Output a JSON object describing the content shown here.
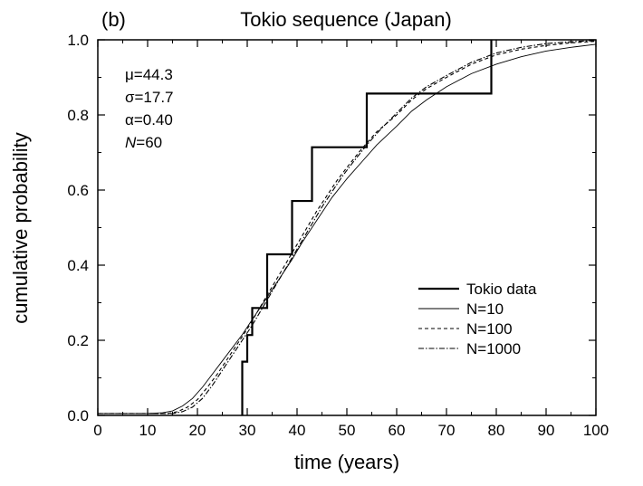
{
  "chart_data": {
    "type": "line",
    "panel_label": "(b)",
    "title": "Tokio sequence (Japan)",
    "xlabel": "time (years)",
    "ylabel": "cumulative probability",
    "xlim": [
      0,
      100
    ],
    "ylim": [
      0.0,
      1.0
    ],
    "x_ticks": [
      "0",
      "10",
      "20",
      "30",
      "40",
      "50",
      "60",
      "70",
      "80",
      "90",
      "100"
    ],
    "y_ticks": [
      "0.0",
      "0.2",
      "0.4",
      "0.6",
      "0.8",
      "1.0"
    ],
    "grid": false,
    "legend_position": "bottom-right",
    "params": [
      {
        "symbol": "μ",
        "value": "=44.3"
      },
      {
        "symbol": "σ",
        "value": "=17.7"
      },
      {
        "symbol": "α",
        "value": "=0.40"
      },
      {
        "symbol": "N",
        "value": "=60"
      }
    ],
    "series": [
      {
        "name": "Tokio data",
        "style": "step-thick",
        "x": [
          29,
          29,
          30,
          30,
          31,
          31,
          34,
          34,
          39,
          39,
          43,
          43,
          54,
          54,
          79,
          79
        ],
        "y": [
          0.0,
          0.143,
          0.143,
          0.214,
          0.214,
          0.286,
          0.286,
          0.429,
          0.429,
          0.571,
          0.571,
          0.714,
          0.714,
          0.857,
          0.857,
          1.0
        ]
      },
      {
        "name": "N=10",
        "style": "thin-solid",
        "x": [
          0,
          10,
          13,
          15,
          17,
          19,
          21,
          23,
          25,
          27,
          29,
          31,
          33,
          35,
          37,
          39,
          41,
          43,
          45,
          47,
          50,
          53,
          56,
          60,
          63,
          66,
          70,
          75,
          80,
          85,
          90,
          95,
          100
        ],
        "y": [
          0.005,
          0.005,
          0.007,
          0.012,
          0.025,
          0.045,
          0.075,
          0.11,
          0.145,
          0.18,
          0.215,
          0.255,
          0.295,
          0.335,
          0.375,
          0.415,
          0.46,
          0.5,
          0.54,
          0.58,
          0.63,
          0.675,
          0.72,
          0.77,
          0.81,
          0.84,
          0.875,
          0.91,
          0.935,
          0.955,
          0.97,
          0.98,
          0.988
        ]
      },
      {
        "name": "N=100",
        "style": "dashed",
        "x": [
          0,
          14,
          16,
          18,
          20,
          22,
          24,
          26,
          28,
          30,
          32,
          34,
          36,
          38,
          40,
          42,
          44,
          46,
          48,
          50,
          53,
          56,
          60,
          63,
          66,
          70,
          75,
          80,
          85,
          90,
          95,
          100
        ],
        "y": [
          0.005,
          0.005,
          0.01,
          0.022,
          0.042,
          0.075,
          0.11,
          0.15,
          0.19,
          0.23,
          0.275,
          0.32,
          0.365,
          0.41,
          0.455,
          0.5,
          0.545,
          0.585,
          0.625,
          0.66,
          0.71,
          0.755,
          0.8,
          0.84,
          0.87,
          0.9,
          0.935,
          0.96,
          0.975,
          0.985,
          0.992,
          0.996
        ]
      },
      {
        "name": "N=1000",
        "style": "dash-dot",
        "x": [
          0,
          15,
          17,
          19,
          21,
          23,
          25,
          27,
          29,
          31,
          33,
          35,
          37,
          39,
          41,
          43,
          45,
          47,
          49,
          51,
          54,
          57,
          60,
          63,
          66,
          70,
          75,
          80,
          85,
          90,
          95,
          100
        ],
        "y": [
          0.005,
          0.005,
          0.01,
          0.022,
          0.045,
          0.08,
          0.12,
          0.16,
          0.2,
          0.24,
          0.285,
          0.33,
          0.375,
          0.42,
          0.465,
          0.51,
          0.555,
          0.595,
          0.635,
          0.67,
          0.72,
          0.765,
          0.805,
          0.845,
          0.875,
          0.905,
          0.94,
          0.965,
          0.98,
          0.99,
          0.995,
          0.998
        ]
      }
    ]
  }
}
